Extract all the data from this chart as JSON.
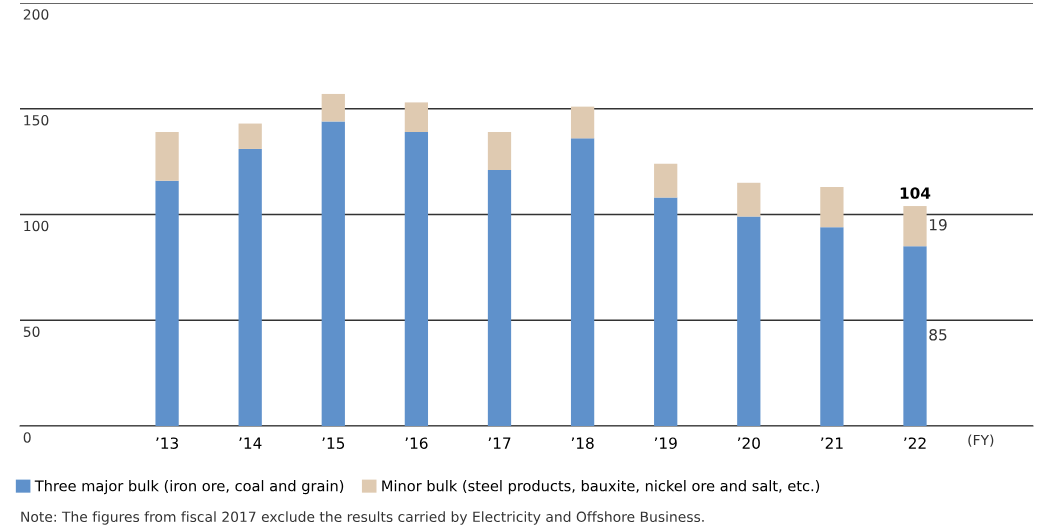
{
  "chart_data": {
    "type": "bar",
    "stacked": true,
    "categories": [
      "’13",
      "’14",
      "’15",
      "’16",
      "’17",
      "’18",
      "’19",
      "’20",
      "’21",
      "’22"
    ],
    "series": [
      {
        "name": "Three major bulk (iron ore, coal and grain)",
        "color": "#5f91cb",
        "values": [
          116,
          131,
          144,
          139,
          121,
          136,
          108,
          99,
          94,
          85
        ],
        "value_labels": [
          null,
          null,
          null,
          null,
          null,
          null,
          null,
          null,
          null,
          "85"
        ]
      },
      {
        "name": "Minor bulk (steel products, bauxite, nickel ore and salt, etc.)",
        "color": "#dfcab1",
        "values": [
          23,
          12,
          13,
          14,
          18,
          15,
          16,
          16,
          19,
          19
        ],
        "value_labels": [
          null,
          null,
          null,
          null,
          null,
          null,
          null,
          null,
          null,
          "19"
        ]
      }
    ],
    "totals": [
      null,
      null,
      null,
      null,
      null,
      null,
      null,
      null,
      null,
      "104"
    ],
    "xlabel": "(FY)",
    "ylim": [
      0,
      200
    ],
    "yticks": [
      0,
      50,
      100,
      150,
      200
    ],
    "grid": "y",
    "legend": "bottom",
    "annotations": [
      "Note: The figures from fiscal 2017 exclude the results carried by Electricity and Offshore Business."
    ]
  }
}
